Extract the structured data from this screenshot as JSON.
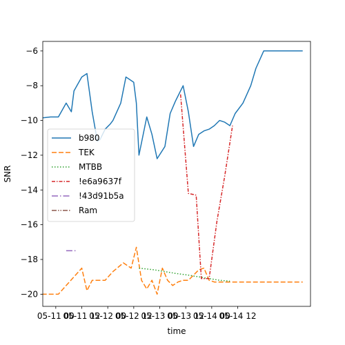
{
  "chart_data": {
    "type": "line",
    "title": "",
    "xlabel": "time",
    "ylabel": "SNR",
    "xlim": [
      -0.25,
      4.9
    ],
    "ylim": [
      -20.7,
      -5.45
    ],
    "x_ticks": [
      {
        "value": 0,
        "label": "05-11 00"
      },
      {
        "value": 0.5,
        "label": "05-11 12"
      },
      {
        "value": 1,
        "label": "05-12 00"
      },
      {
        "value": 1.5,
        "label": "05-12 12"
      },
      {
        "value": 2,
        "label": "05-13 00"
      },
      {
        "value": 2.5,
        "label": "05-13 12"
      },
      {
        "value": 3,
        "label": "05-14 00"
      },
      {
        "value": 3.5,
        "label": "05-14 12"
      }
    ],
    "y_ticks": [
      -20,
      -18,
      -16,
      -14,
      -12,
      -10,
      -8,
      -6
    ],
    "grid": false,
    "legend_position": "center-left",
    "series": [
      {
        "name": "b980",
        "color": "#1f77b4",
        "dash": "solid",
        "x": [
          -0.4,
          -0.1,
          0.0,
          0.05,
          0.2,
          0.3,
          0.35,
          0.5,
          0.6,
          0.7,
          0.8,
          0.85,
          0.95,
          1.05,
          1.1,
          1.25,
          1.35,
          1.4,
          1.5,
          1.55,
          1.6,
          1.75,
          1.85,
          1.95,
          2.1,
          2.2,
          2.3,
          2.45,
          2.55,
          2.65,
          2.75,
          2.85,
          2.95,
          3.05,
          3.15,
          3.25,
          3.35,
          3.45,
          3.6,
          3.75,
          3.85,
          4.0,
          4.1,
          4.2,
          4.35,
          4.45,
          4.6,
          4.75
        ],
        "y": [
          -9.9,
          -9.8,
          -9.8,
          -9.8,
          -9.0,
          -9.5,
          -8.3,
          -7.5,
          -7.3,
          -9.5,
          -11.2,
          -11.1,
          -10.5,
          -10.2,
          -10.0,
          -9.0,
          -7.5,
          -7.6,
          -7.8,
          -9.0,
          -12.0,
          -9.8,
          -10.8,
          -12.2,
          -11.5,
          -9.6,
          -8.9,
          -8.0,
          -9.5,
          -11.5,
          -10.8,
          -10.6,
          -10.5,
          -10.3,
          -10.0,
          -10.1,
          -10.3,
          -9.6,
          -9.0,
          -8.0,
          -7.0,
          -6.0,
          -6.0,
          -6.0,
          -6.0,
          -6.0,
          -6.0,
          -6.0
        ]
      },
      {
        "name": "TEK",
        "color": "#ff7f0e",
        "dash": "dashed",
        "x": [
          -0.4,
          -0.1,
          0.0,
          0.05,
          0.2,
          0.35,
          0.5,
          0.6,
          0.7,
          0.8,
          0.95,
          1.1,
          1.3,
          1.45,
          1.55,
          1.65,
          1.75,
          1.85,
          1.95,
          2.05,
          2.15,
          2.25,
          2.35,
          2.45,
          2.55,
          2.65,
          2.75,
          2.85,
          2.95,
          3.05,
          3.2,
          3.35,
          3.5,
          3.65,
          3.75,
          3.85,
          4.0,
          4.15,
          4.3,
          4.45,
          4.6,
          4.75
        ],
        "y": [
          -20.0,
          -20.0,
          -20.0,
          -20.0,
          -19.5,
          -19.0,
          -18.5,
          -19.8,
          -19.2,
          -19.2,
          -19.2,
          -18.7,
          -18.2,
          -18.5,
          -17.3,
          -19.2,
          -19.7,
          -19.2,
          -20.0,
          -18.5,
          -19.2,
          -19.5,
          -19.3,
          -19.2,
          -19.2,
          -18.9,
          -18.6,
          -18.5,
          -19.2,
          -19.3,
          -19.3,
          -19.3,
          -19.3,
          -19.3,
          -19.3,
          -19.3,
          -19.3,
          -19.3,
          -19.3,
          -19.3,
          -19.3,
          -19.3
        ]
      },
      {
        "name": "MTBB",
        "color": "#2ca02c",
        "dash": "dotted",
        "x": [
          1.6,
          1.9,
          2.1,
          2.3,
          2.55,
          2.75,
          2.95,
          3.15,
          3.35
        ],
        "y": [
          -18.5,
          -18.6,
          -18.7,
          -18.8,
          -18.9,
          -19.0,
          -19.1,
          -19.2,
          -19.25
        ]
      },
      {
        "name": "!e6a9637f",
        "color": "#d62728",
        "dash": "dashdot-dense",
        "x": [
          2.4,
          2.55,
          2.7,
          2.8,
          2.95,
          3.1,
          3.25,
          3.4
        ],
        "y": [
          -8.5,
          -14.2,
          -14.3,
          -19.1,
          -19.1,
          -15.8,
          -13.2,
          -10.3
        ]
      },
      {
        "name": "!43d91b5a",
        "color": "#9467bd",
        "dash": "dashdot",
        "x": [
          0.2,
          0.4
        ],
        "y": [
          -17.5,
          -17.5
        ]
      },
      {
        "name": "Ram",
        "color": "#8c564b",
        "dash": "dashdotdot",
        "x": [],
        "y": []
      }
    ]
  }
}
